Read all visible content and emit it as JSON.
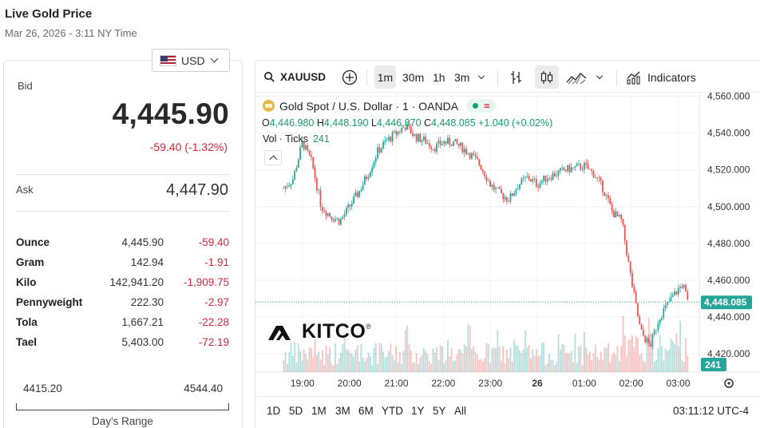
{
  "header": {
    "title": "Live Gold Price",
    "timestamp": "Mar 26, 2026 - 3:11 NY Time"
  },
  "currency": {
    "selected": "USD",
    "flag_icon": "us-flag-icon"
  },
  "quote": {
    "bid_label": "Bid",
    "bid": "4,445.90",
    "change": "-59.40 (-1.32%)",
    "ask_label": "Ask",
    "ask": "4,447.90"
  },
  "units": [
    {
      "name": "Ounce",
      "price": "4,445.90",
      "change": "-59.40"
    },
    {
      "name": "Gram",
      "price": "142.94",
      "change": "-1.91"
    },
    {
      "name": "Kilo",
      "price": "142,941.20",
      "change": "-1,909.75"
    },
    {
      "name": "Pennyweight",
      "price": "222.30",
      "change": "-2.97"
    },
    {
      "name": "Tola",
      "price": "1,667.21",
      "change": "-22.28"
    },
    {
      "name": "Tael",
      "price": "5,403.00",
      "change": "-72.19"
    }
  ],
  "day_range": {
    "low": "4415.20",
    "high": "4544.40",
    "label": "Day's Range"
  },
  "chart_toolbar": {
    "symbol": "XAUUSD",
    "intervals": [
      "1m",
      "30m",
      "1h",
      "3m"
    ],
    "active_interval": "1m",
    "indicators_label": "Indicators"
  },
  "chart_legend": {
    "instrument": "Gold Spot / U.S. Dollar · 1 · OANDA",
    "approx": "≈",
    "o_label": "O",
    "o": "4,446.980",
    "h_label": "H",
    "h": "4,448.190",
    "l_label": "L",
    "l": "4,446.870",
    "c_label": "C",
    "c": "4,448.085",
    "chg": "+1.040 (+0.02%)",
    "vol_label": "Vol · Ticks",
    "vol": "241"
  },
  "logo": {
    "text": "KITCO",
    "reg": "®"
  },
  "ranges": [
    "1D",
    "5D",
    "1M",
    "3M",
    "6M",
    "YTD",
    "1Y",
    "5Y",
    "All"
  ],
  "clock": "03:11:12 UTC-4",
  "colors": {
    "up": "#26a69a",
    "down": "#ef5350",
    "accent_red": "#d6263a",
    "accent_green": "#1a9b6c"
  },
  "chart_data": {
    "type": "candlestick",
    "x_ticks": [
      "19:00",
      "20:00",
      "21:00",
      "22:00",
      "23:00",
      "26",
      "01:00",
      "02:00",
      "03:00"
    ],
    "y_ticks": [
      "4,560.000",
      "4,540.000",
      "4,520.000",
      "4,500.000",
      "4,480.000",
      "4,460.000",
      "4,440.000",
      "4,420.000"
    ],
    "ylim": [
      4410,
      4562
    ],
    "last_price": "4,448.085",
    "last_volume": "241",
    "price_path": [
      [
        18.6,
        4510
      ],
      [
        18.8,
        4515
      ],
      [
        19.0,
        4535
      ],
      [
        19.2,
        4524
      ],
      [
        19.4,
        4500
      ],
      [
        19.6,
        4495
      ],
      [
        19.8,
        4492
      ],
      [
        20.0,
        4500
      ],
      [
        20.2,
        4508
      ],
      [
        20.4,
        4518
      ],
      [
        20.6,
        4530
      ],
      [
        20.8,
        4536
      ],
      [
        21.0,
        4540
      ],
      [
        21.2,
        4544
      ],
      [
        21.4,
        4538
      ],
      [
        21.6,
        4536
      ],
      [
        21.8,
        4532
      ],
      [
        22.0,
        4535
      ],
      [
        22.2,
        4535
      ],
      [
        22.4,
        4532
      ],
      [
        22.6,
        4528
      ],
      [
        22.8,
        4522
      ],
      [
        23.0,
        4512
      ],
      [
        23.2,
        4507
      ],
      [
        23.4,
        4504
      ],
      [
        23.6,
        4512
      ],
      [
        23.8,
        4516
      ],
      [
        24.0,
        4512
      ],
      [
        24.2,
        4516
      ],
      [
        24.4,
        4518
      ],
      [
        24.6,
        4520
      ],
      [
        24.8,
        4521
      ],
      [
        25.0,
        4522
      ],
      [
        25.2,
        4518
      ],
      [
        25.4,
        4510
      ],
      [
        25.6,
        4497
      ],
      [
        25.8,
        4492
      ],
      [
        26.0,
        4460
      ],
      [
        26.2,
        4432
      ],
      [
        26.4,
        4424
      ],
      [
        26.6,
        4440
      ],
      [
        26.8,
        4448
      ],
      [
        27.0,
        4455
      ],
      [
        27.1,
        4458
      ],
      [
        27.2,
        4448
      ]
    ]
  }
}
